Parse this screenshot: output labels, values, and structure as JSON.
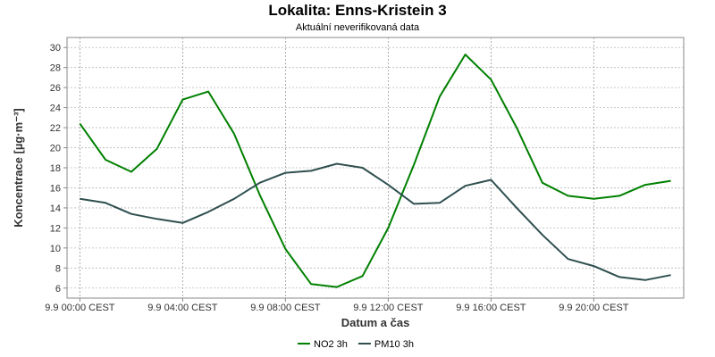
{
  "chart_data": {
    "type": "line",
    "title": "Lokalita: Enns-Kristein 3",
    "subtitle": "Aktuální neverifikovaná data",
    "xlabel": "Datum a čas",
    "ylabel": "Koncentrace [µg·m⁻³]",
    "ylim": [
      5,
      31
    ],
    "yticks": [
      6,
      8,
      10,
      12,
      14,
      16,
      18,
      20,
      22,
      24,
      26,
      28,
      30
    ],
    "xticks": [
      {
        "hour": 0,
        "label": "9.9 00:00 CEST"
      },
      {
        "hour": 4,
        "label": "9.9 04:00 CEST"
      },
      {
        "hour": 8,
        "label": "9.9 08:00 CEST"
      },
      {
        "hour": 12,
        "label": "9.9 12:00 CEST"
      },
      {
        "hour": 16,
        "label": "9.9 16:00 CEST"
      },
      {
        "hour": 20,
        "label": "9.9 20:00 CEST"
      }
    ],
    "xlim_hours": [
      -0.5,
      23.5
    ],
    "x_hours": [
      0,
      1,
      2,
      3,
      4,
      5,
      6,
      7,
      8,
      9,
      10,
      11,
      12,
      13,
      14,
      15,
      16,
      17,
      18,
      19,
      20,
      21,
      22,
      23
    ],
    "grid": true,
    "legend_position": "bottom",
    "series": [
      {
        "name": "NO2 3h",
        "color": "#008000",
        "values": [
          22.4,
          18.8,
          17.6,
          19.9,
          24.8,
          25.6,
          21.4,
          15.3,
          9.9,
          6.4,
          6.1,
          7.2,
          12.0,
          18.3,
          25.1,
          29.3,
          26.8,
          22.0,
          16.5,
          15.2,
          14.9,
          15.2,
          16.3,
          16.7
        ]
      },
      {
        "name": "PM10 3h",
        "color": "#2F4F4F",
        "values": [
          14.9,
          14.5,
          13.4,
          12.9,
          12.5,
          13.6,
          14.9,
          16.5,
          17.5,
          17.7,
          18.4,
          18.0,
          16.3,
          14.4,
          14.5,
          16.2,
          16.8,
          14.0,
          11.3,
          8.9,
          8.2,
          7.1,
          6.8,
          7.3
        ]
      }
    ]
  }
}
